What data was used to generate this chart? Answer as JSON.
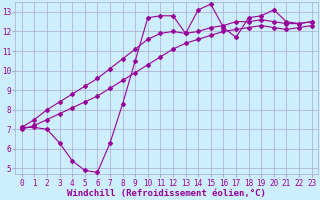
{
  "title": "",
  "xlabel": "Windchill (Refroidissement éolien,°C)",
  "ylabel": "",
  "bg_color": "#cceeff",
  "grid_color": "#aaaacc",
  "line_color": "#990099",
  "xlim": [
    -0.5,
    23.5
  ],
  "ylim": [
    4.7,
    13.5
  ],
  "xticks": [
    0,
    1,
    2,
    3,
    4,
    5,
    6,
    7,
    8,
    9,
    10,
    11,
    12,
    13,
    14,
    15,
    16,
    17,
    18,
    19,
    20,
    21,
    22,
    23
  ],
  "yticks": [
    5,
    6,
    7,
    8,
    9,
    10,
    11,
    12,
    13
  ],
  "line1_x": [
    0,
    1,
    2,
    3,
    4,
    5,
    6,
    7,
    8,
    9,
    10,
    11,
    12,
    13,
    14,
    15,
    16,
    17,
    18,
    19,
    20,
    21,
    22,
    23
  ],
  "line1_y": [
    7.1,
    7.1,
    7.0,
    6.3,
    5.4,
    4.9,
    4.8,
    6.3,
    8.3,
    10.5,
    12.7,
    12.8,
    12.8,
    11.9,
    13.1,
    13.4,
    12.2,
    11.7,
    12.7,
    12.8,
    13.1,
    12.5,
    12.4,
    12.5
  ],
  "line2_x": [
    0,
    1,
    2,
    3,
    4,
    5,
    6,
    7,
    8,
    9,
    10,
    11,
    12,
    13,
    14,
    15,
    16,
    17,
    18,
    19,
    20,
    21,
    22,
    23
  ],
  "line2_y": [
    7.1,
    7.5,
    8.0,
    8.4,
    8.8,
    9.2,
    9.6,
    10.1,
    10.6,
    11.1,
    11.6,
    11.9,
    12.0,
    11.9,
    12.0,
    12.2,
    12.3,
    12.5,
    12.5,
    12.6,
    12.5,
    12.4,
    12.4,
    12.5
  ],
  "line3_x": [
    0,
    1,
    2,
    3,
    4,
    5,
    6,
    7,
    8,
    9,
    10,
    11,
    12,
    13,
    14,
    15,
    16,
    17,
    18,
    19,
    20,
    21,
    22,
    23
  ],
  "line3_y": [
    7.0,
    7.2,
    7.5,
    7.8,
    8.1,
    8.4,
    8.7,
    9.1,
    9.5,
    9.9,
    10.3,
    10.7,
    11.1,
    11.4,
    11.6,
    11.8,
    12.0,
    12.1,
    12.2,
    12.3,
    12.2,
    12.1,
    12.2,
    12.3
  ],
  "marker": "D",
  "markersize": 2.0,
  "linewidth": 0.8,
  "tick_fontsize": 5.5,
  "xlabel_fontsize": 6.5
}
